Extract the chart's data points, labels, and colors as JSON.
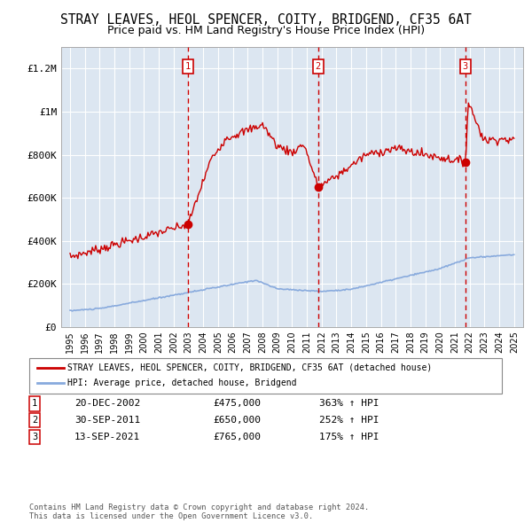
{
  "title": "STRAY LEAVES, HEOL SPENCER, COITY, BRIDGEND, CF35 6AT",
  "subtitle": "Price paid vs. HM Land Registry's House Price Index (HPI)",
  "title_fontsize": 10.5,
  "subtitle_fontsize": 9,
  "background_color": "#ffffff",
  "plot_bg_color": "#dce6f1",
  "grid_color": "#ffffff",
  "ylim": [
    0,
    1300000
  ],
  "yticks": [
    0,
    200000,
    400000,
    600000,
    800000,
    1000000,
    1200000
  ],
  "ytick_labels": [
    "£0",
    "£200K",
    "£400K",
    "£600K",
    "£800K",
    "£1M",
    "£1.2M"
  ],
  "sale_events": [
    {
      "date": "20-DEC-2002",
      "price": 475000,
      "pct": "363%",
      "label": "1",
      "year": 2002.96
    },
    {
      "date": "30-SEP-2011",
      "price": 650000,
      "pct": "252%",
      "label": "2",
      "year": 2011.75
    },
    {
      "date": "13-SEP-2021",
      "price": 765000,
      "pct": "175%",
      "label": "3",
      "year": 2021.71
    }
  ],
  "legend_line1": "STRAY LEAVES, HEOL SPENCER, COITY, BRIDGEND, CF35 6AT (detached house)",
  "legend_line2": "HPI: Average price, detached house, Bridgend",
  "footnote": "Contains HM Land Registry data © Crown copyright and database right 2024.\nThis data is licensed under the Open Government Licence v3.0.",
  "red_color": "#cc0000",
  "blue_color": "#88aadd",
  "dashed_color": "#cc0000"
}
